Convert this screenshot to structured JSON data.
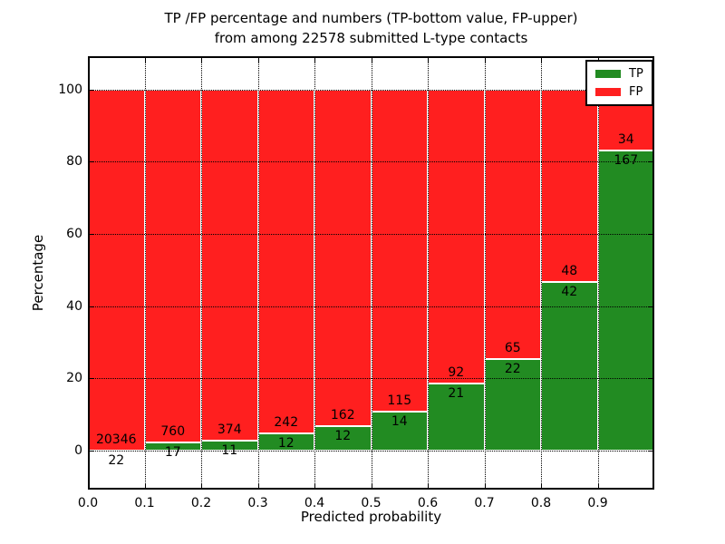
{
  "figure": {
    "title_line1": "TP /FP percentage and numbers (TP-bottom value, FP-upper)",
    "title_line2": "from among 22578 submitted L-type contacts"
  },
  "chart_data": {
    "type": "bar",
    "stacked": true,
    "normalized_to_percent": 100,
    "title": "TP /FP percentage and numbers (TP-bottom value, FP-upper) from among 22578 submitted L-type contacts",
    "xlabel": "Predicted probability",
    "ylabel": "Percentage",
    "total_submitted": 22578,
    "bin_width": 0.1,
    "bins_start": [
      0.0,
      0.1,
      0.2,
      0.3,
      0.4,
      0.5,
      0.6,
      0.7,
      0.8,
      0.9
    ],
    "x_tick_labels": [
      "0.0",
      "0.1",
      "0.2",
      "0.3",
      "0.4",
      "0.5",
      "0.6",
      "0.7",
      "0.8",
      "0.9"
    ],
    "y_tick_values": [
      0,
      20,
      40,
      60,
      80,
      100
    ],
    "y_tick_labels": [
      "0",
      "20",
      "40",
      "60",
      "80",
      "100"
    ],
    "ylim": [
      -10.8,
      109.2
    ],
    "xlim": [
      0.0,
      1.0
    ],
    "grid": "dotted",
    "legend_position": "upper right",
    "series": [
      {
        "name": "TP",
        "color": "#228b22",
        "counts": [
          22,
          17,
          11,
          12,
          12,
          14,
          21,
          22,
          42,
          167
        ]
      },
      {
        "name": "FP",
        "color": "#ff1f1f",
        "counts": [
          20346,
          760,
          374,
          242,
          162,
          115,
          92,
          65,
          48,
          34
        ]
      }
    ],
    "tp_percent": [
      0.11,
      2.19,
      2.86,
      4.72,
      6.9,
      10.85,
      18.58,
      25.29,
      46.67,
      83.08
    ],
    "label_note": "TP count printed below green top, FP count printed above green top"
  }
}
